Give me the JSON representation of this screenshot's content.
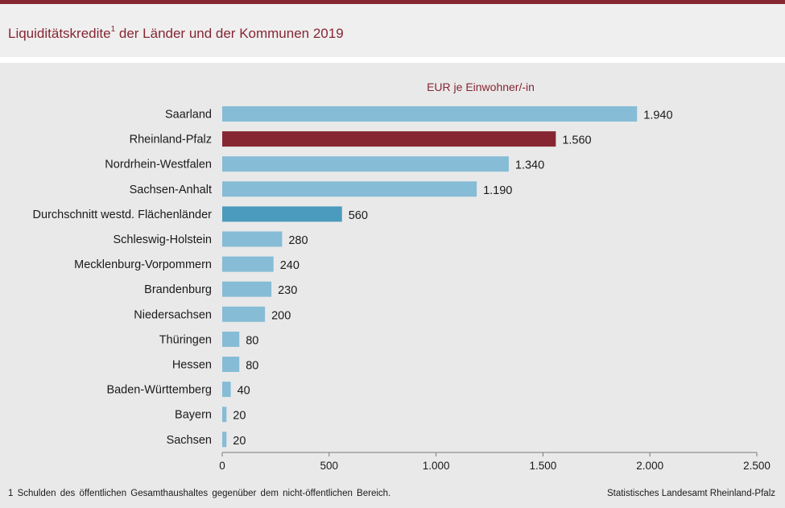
{
  "header": {
    "title_main": "Liquiditätskredite",
    "title_sup": "1",
    "title_rest": " der Länder und der Kommunen 2019"
  },
  "footer": {
    "footnote": "1 Schulden des öffentlichen Gesamthaushaltes gegenüber dem nicht-öffentlichen Bereich.",
    "source": "Statistisches Landesamt Rheinland-Pfalz"
  },
  "colors": {
    "default_bar": "#86bcd6",
    "highlight_bar": "#862633",
    "average_bar": "#4a9bbd",
    "accent": "#862633"
  },
  "chart_data": {
    "type": "bar",
    "orientation": "horizontal",
    "title": "Liquiditätskredite der Länder und der Kommunen 2019",
    "unit_label": "EUR je Einwohner/-in",
    "categories": [
      "Saarland",
      "Rheinland-Pfalz",
      "Nordrhein-Westfalen",
      "Sachsen-Anhalt",
      "Durchschnitt westd. Flächenländer",
      "Schleswig-Holstein",
      "Mecklenburg-Vorpommern",
      "Brandenburg",
      "Niedersachsen",
      "Thüringen",
      "Hessen",
      "Baden-Württemberg",
      "Bayern",
      "Sachsen"
    ],
    "values": [
      1940,
      1560,
      1340,
      1190,
      560,
      280,
      240,
      230,
      200,
      80,
      80,
      40,
      20,
      20
    ],
    "value_labels": [
      "1.940",
      "1.560",
      "1.340",
      "1.190",
      "560",
      "280",
      "240",
      "230",
      "200",
      "80",
      "80",
      "40",
      "20",
      "20"
    ],
    "highlight": "Rheinland-Pfalz",
    "average": "Durchschnitt westd. Flächenländer",
    "xlim": [
      0,
      2500
    ],
    "xticks": [
      0,
      500,
      1000,
      1500,
      2000,
      2500
    ],
    "xtick_labels": [
      "0",
      "500",
      "1.000",
      "1.500",
      "2.000",
      "2.500"
    ],
    "grid": false
  }
}
